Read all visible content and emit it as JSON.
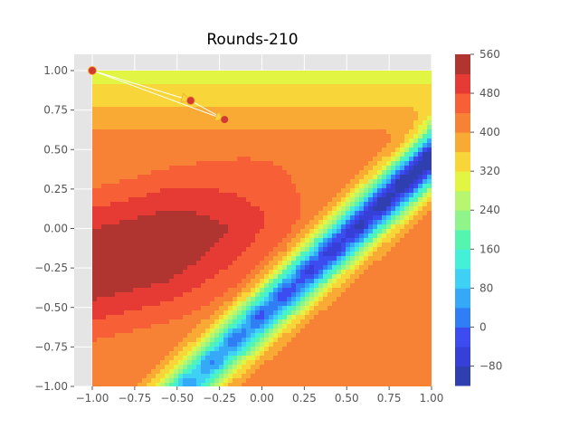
{
  "chart_data": {
    "type": "contour",
    "title": "Rounds-210",
    "xlabel": "",
    "ylabel": "",
    "xlim": [
      -1.0,
      1.0
    ],
    "ylim": [
      -1.0,
      1.0
    ],
    "x_ticks": [
      "−1.00",
      "−0.75",
      "−0.50",
      "−0.25",
      "0.00",
      "0.25",
      "0.50",
      "0.75",
      "1.00"
    ],
    "y_ticks": [
      "1.00",
      "0.75",
      "0.50",
      "0.25",
      "0.00",
      "−0.25",
      "−0.50",
      "−0.75",
      "−1.00"
    ],
    "colorbar": {
      "range": [
        -120,
        560
      ],
      "ticks": [
        "560",
        "480",
        "400",
        "320",
        "240",
        "160",
        "80",
        "0",
        "−80"
      ],
      "levels": [
        -120,
        -80,
        -40,
        0,
        40,
        80,
        120,
        160,
        200,
        240,
        280,
        320,
        360,
        400,
        440,
        480,
        520,
        560
      ],
      "colors": [
        "#2f3fb0",
        "#3640d8",
        "#3c4cf0",
        "#2f7ef5",
        "#36a8f8",
        "#3fd0f5",
        "#45f0d8",
        "#55f5b0",
        "#8ff58a",
        "#b8f570",
        "#e2f542",
        "#f8d63a",
        "#f8aa35",
        "#f78236",
        "#f75f37",
        "#e63a35",
        "#b03530"
      ]
    },
    "grid": true,
    "path": {
      "points": [
        [
          -1.0,
          1.0
        ],
        [
          -0.42,
          0.81
        ],
        [
          -0.22,
          0.69
        ]
      ],
      "arrows": [
        [
          [
            -1.0,
            1.0
          ],
          [
            -0.42,
            0.81
          ]
        ],
        [
          [
            -0.42,
            0.81
          ],
          [
            -0.22,
            0.69
          ]
        ],
        [
          [
            -1.0,
            1.0
          ],
          [
            -0.22,
            0.69
          ]
        ]
      ]
    }
  }
}
